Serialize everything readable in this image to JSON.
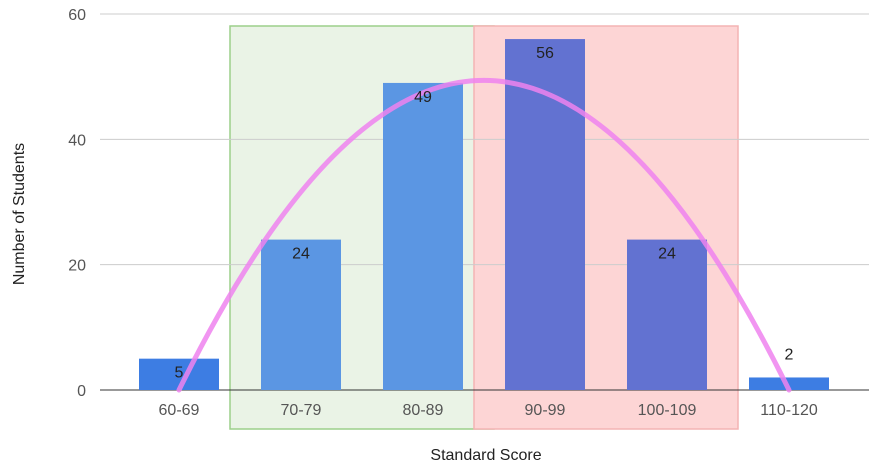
{
  "chart_data": {
    "type": "bar",
    "categories": [
      "60-69",
      "70-79",
      "80-89",
      "90-99",
      "100-109",
      "110-120"
    ],
    "values": [
      5,
      24,
      49,
      56,
      24,
      2
    ],
    "data_labels": [
      "5",
      "24",
      "49",
      "56",
      "24",
      "2"
    ],
    "bar_colors": [
      "#3d7de3",
      "#5b96e3",
      "#5b96e3",
      "#6272d1",
      "#6272d1",
      "#3d7de3"
    ],
    "xlabel": "Standard Score",
    "ylabel": "Number of Students",
    "ylim": [
      0,
      60
    ],
    "yticks": [
      0,
      20,
      40,
      60
    ],
    "ytick_labels": [
      "0",
      "20",
      "40",
      "60"
    ],
    "grid": true,
    "legend": "none",
    "highlight_regions": [
      {
        "from_category": "70-79",
        "to_category": "80-89",
        "fill": "#eaf3e6",
        "stroke": "#9ccf8a"
      },
      {
        "from_category": "90-99",
        "to_category": "100-109",
        "fill": "#fdd5d5",
        "stroke": "#f4b3b3"
      }
    ],
    "trend_curve": {
      "shape": "parabola",
      "color": "#ee82ee",
      "x_start": "60-69",
      "x_end": "110-120",
      "peak_value": 49.4
    }
  }
}
